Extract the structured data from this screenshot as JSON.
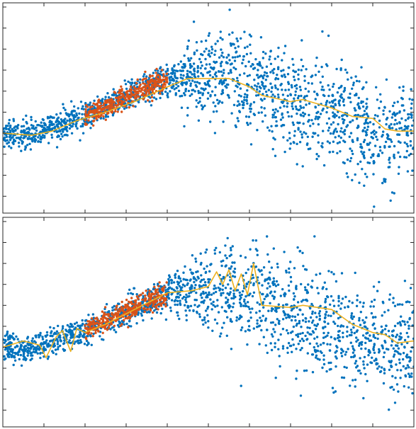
{
  "chart_data": [
    {
      "type": "scatter",
      "title": "",
      "xlabel": "",
      "ylabel": "",
      "xlim": [
        0,
        10
      ],
      "ylim": [
        -3.8,
        6.2
      ],
      "xticks": [
        0,
        1,
        2,
        3,
        4,
        5,
        6,
        7,
        8,
        9,
        10
      ],
      "yticks": [
        -3,
        -2,
        -1,
        0,
        1,
        2,
        3,
        4,
        5,
        6
      ],
      "tick_labels_shown": false,
      "grid": false,
      "colors": {
        "blue": "#0072BD",
        "orange": "#D95319",
        "fit": "#EDB120",
        "axes": "#262626"
      },
      "series": [
        {
          "marker": "dot",
          "color": "#0072BD",
          "x_range": [
            0,
            10
          ],
          "trend": {
            "x": [
              0,
              0.7,
              2,
              4,
              5.5,
              7,
              8.5,
              9.2,
              10
            ],
            "y": [
              0.0,
              -0.1,
              0.8,
              2.6,
              2.8,
              1.6,
              0.7,
              -0.1,
              0.1
            ]
          },
          "spread": {
            "x": [
              0,
              1,
              2,
              3,
              4,
              5,
              6,
              7,
              8,
              9,
              10
            ],
            "y": [
              0.35,
              0.3,
              0.3,
              0.35,
              0.4,
              1.0,
              1.2,
              1.2,
              1.2,
              1.2,
              1.2
            ]
          }
        },
        {
          "marker": "dot",
          "color": "#D95319",
          "x_range": [
            2,
            4
          ],
          "trend": {
            "x": [
              2,
              4
            ],
            "y": [
              0.8,
              2.6
            ]
          },
          "spread": {
            "x": [
              2,
              4
            ],
            "y": [
              0.22,
              0.28
            ]
          }
        },
        {
          "type": "line",
          "color": "#EDB120",
          "x": [
            0,
            0.7,
            1.2,
            1.8,
            2.5,
            3.2,
            4,
            4.5,
            5.5,
            6,
            6.3,
            7,
            7.3,
            8,
            8.5,
            9,
            9.3,
            9.6,
            10
          ],
          "y": [
            0.0,
            -0.1,
            0.1,
            0.6,
            1.0,
            1.5,
            2.2,
            2.6,
            2.6,
            2.2,
            1.8,
            1.5,
            1.6,
            1.2,
            0.8,
            0.7,
            0.2,
            0.1,
            0.1
          ]
        }
      ]
    },
    {
      "type": "scatter",
      "title": "",
      "xlabel": "",
      "ylabel": "",
      "xlim": [
        0,
        10
      ],
      "ylim": [
        -3.8,
        6.2
      ],
      "xticks": [
        0,
        1,
        2,
        3,
        4,
        5,
        6,
        7,
        8,
        9,
        10
      ],
      "yticks": [
        -3,
        -2,
        -1,
        0,
        1,
        2,
        3,
        4,
        5,
        6
      ],
      "tick_labels_shown": false,
      "grid": false,
      "colors": {
        "blue": "#0072BD",
        "orange": "#D95319",
        "fit": "#EDB120",
        "axes": "#262626"
      },
      "series": [
        {
          "marker": "dot",
          "color": "#0072BD",
          "x_range": [
            0,
            10
          ],
          "trend": {
            "x": [
              0,
              0.7,
              2,
              4,
              5.5,
              7,
              8.5,
              9.2,
              10
            ],
            "y": [
              0.0,
              -0.1,
              0.8,
              2.6,
              2.8,
              1.6,
              0.7,
              -0.1,
              0.1
            ]
          },
          "spread": {
            "x": [
              0,
              1,
              2,
              3,
              4,
              5,
              6,
              7,
              8,
              9,
              10
            ],
            "y": [
              0.35,
              0.3,
              0.3,
              0.35,
              0.4,
              1.0,
              1.2,
              1.2,
              1.2,
              1.2,
              1.2
            ]
          }
        },
        {
          "marker": "dot",
          "color": "#D95319",
          "x_range": [
            2,
            4
          ],
          "trend": {
            "x": [
              2,
              4
            ],
            "y": [
              0.8,
              2.6
            ]
          },
          "spread": {
            "x": [
              2,
              4
            ],
            "y": [
              0.22,
              0.28
            ]
          }
        },
        {
          "type": "line",
          "color": "#EDB120",
          "x": [
            0,
            0.5,
            0.9,
            1.05,
            1.3,
            1.45,
            1.65,
            1.8,
            2,
            2.5,
            3,
            3.5,
            4,
            4.6,
            5,
            5.2,
            5.35,
            5.5,
            5.65,
            5.8,
            5.95,
            6.1,
            6.3,
            7,
            7.3,
            8,
            8.5,
            9,
            9.3,
            9.6,
            10
          ],
          "y": [
            0.0,
            0.3,
            0.1,
            -0.5,
            0.5,
            0.8,
            -0.2,
            0.9,
            0.7,
            1.1,
            1.6,
            2.1,
            2.6,
            2.7,
            2.9,
            3.6,
            3.0,
            3.7,
            2.7,
            3.5,
            2.5,
            4.0,
            2.0,
            1.9,
            2.0,
            1.8,
            1.1,
            0.7,
            0.6,
            0.2,
            0.3
          ]
        }
      ]
    }
  ]
}
